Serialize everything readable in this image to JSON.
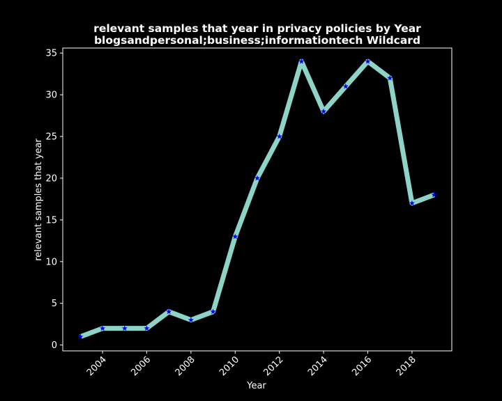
{
  "chart_data": {
    "type": "line",
    "title_line1": "relevant samples that year in privacy policies by Year",
    "title_line2": "blogsandpersonal;business;informationtech Wildcard",
    "xlabel": "Year",
    "ylabel": "relevant samples that year",
    "xlim": [
      2002.2,
      2019.8
    ],
    "ylim": [
      -0.7,
      35.6
    ],
    "xticks": [
      2004,
      2006,
      2008,
      2010,
      2012,
      2014,
      2016,
      2018
    ],
    "yticks": [
      0,
      5,
      10,
      15,
      20,
      25,
      30,
      35
    ],
    "grid": false,
    "line_color": "#8dd3c7",
    "marker_color": "#0000ff",
    "marker": "star",
    "x": [
      2003,
      2004,
      2005,
      2006,
      2007,
      2008,
      2009,
      2010,
      2011,
      2012,
      2013,
      2014,
      2015,
      2016,
      2017,
      2018,
      2019
    ],
    "values": [
      1,
      2,
      2,
      2,
      4,
      3,
      4,
      13,
      20,
      25,
      34,
      28,
      31,
      34,
      32,
      17,
      18
    ]
  }
}
